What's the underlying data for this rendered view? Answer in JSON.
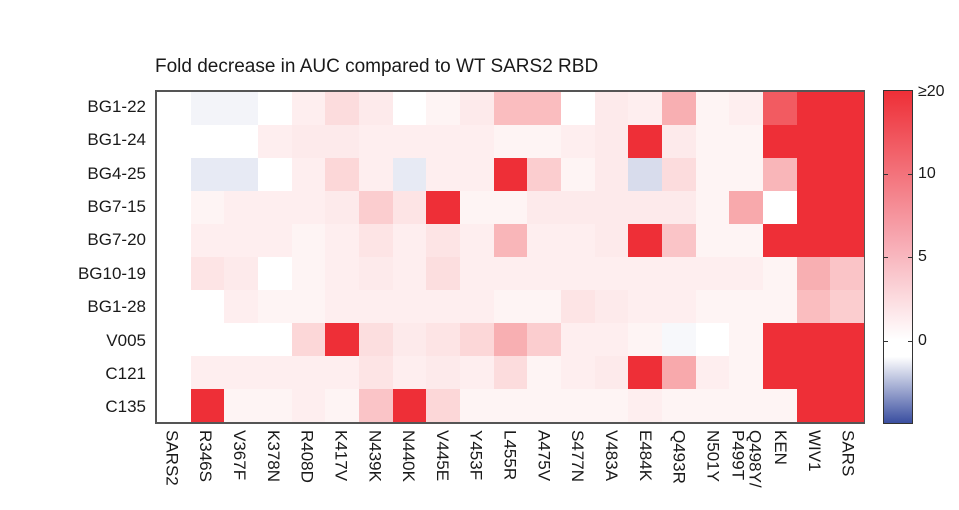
{
  "chart_data": {
    "type": "heatmap",
    "title": "Fold decrease in AUC compared to WT SARS2 RBD",
    "rows": [
      "BG1-22",
      "BG1-24",
      "BG4-25",
      "BG7-15",
      "BG7-20",
      "BG10-19",
      "BG1-28",
      "V005",
      "C121",
      "C135"
    ],
    "columns": [
      "SARS2",
      "R346S",
      "V367F",
      "K378N",
      "R408D",
      "K417V",
      "N439K",
      "N440K",
      "V445E",
      "Y453F",
      "L455R",
      "A475V",
      "S477N",
      "V483A",
      "E484K",
      "Q493R",
      "N501Y",
      "Q498Y/\nP499T",
      "KEN",
      "WIV1",
      "SARS"
    ],
    "values": [
      [
        0,
        -0.3,
        -0.3,
        0,
        0.2,
        0.8,
        0.3,
        0,
        0.1,
        0.3,
        2.5,
        2.5,
        0,
        0.3,
        0.2,
        3.5,
        0.1,
        0.2,
        13,
        20,
        20
      ],
      [
        0,
        0,
        0,
        0.2,
        0.3,
        0.3,
        0.2,
        0.2,
        0.2,
        0.2,
        0.1,
        0.1,
        0.2,
        0.3,
        20,
        0.3,
        0.1,
        0.1,
        20,
        20,
        20
      ],
      [
        0,
        -0.6,
        -0.6,
        0,
        0.2,
        1,
        0.2,
        -0.6,
        0.2,
        0.2,
        20,
        1.5,
        0.1,
        0.3,
        -1,
        0.8,
        0.1,
        0.1,
        3,
        20,
        20
      ],
      [
        0,
        0.1,
        0.2,
        0.2,
        0.2,
        0.3,
        1.5,
        0.5,
        20,
        0.1,
        0.1,
        0.3,
        0.3,
        0.3,
        0.3,
        0.3,
        0.1,
        4,
        0,
        20,
        20
      ],
      [
        0,
        0.2,
        0.2,
        0.2,
        0.1,
        0.2,
        0.5,
        0.2,
        0.5,
        0.2,
        3,
        0.2,
        0.2,
        0.3,
        20,
        2,
        0.1,
        0.1,
        20,
        20,
        20
      ],
      [
        0,
        0.5,
        0.3,
        0,
        0.1,
        0.2,
        0.3,
        0.2,
        0.7,
        0.2,
        0.2,
        0.2,
        0.2,
        0.2,
        0.2,
        0.2,
        0.2,
        0.2,
        0.1,
        3.5,
        2
      ],
      [
        0,
        0,
        0.2,
        0.1,
        0.1,
        0.2,
        0.2,
        0.2,
        0.2,
        0.2,
        0.1,
        0.1,
        0.5,
        0.3,
        0.2,
        0.2,
        0.1,
        0.1,
        0.1,
        2.5,
        1.5
      ],
      [
        0,
        0,
        0,
        0,
        1,
        20,
        0.7,
        0.3,
        0.5,
        1,
        3.5,
        1.5,
        0.2,
        0.2,
        0.1,
        -0.2,
        0,
        0.1,
        20,
        20,
        20
      ],
      [
        0,
        0.2,
        0.2,
        0.2,
        0.2,
        0.2,
        0.5,
        0.2,
        0.3,
        0.2,
        0.8,
        0.1,
        0.2,
        0.3,
        20,
        4,
        0.2,
        0.1,
        20,
        20,
        20
      ],
      [
        0,
        20,
        0.1,
        0.1,
        0.2,
        0.1,
        2,
        20,
        1,
        0.1,
        0.1,
        0.1,
        0.1,
        0.1,
        0.2,
        0.1,
        0.1,
        0.1,
        0.1,
        20,
        20
      ]
    ],
    "colorbar": {
      "ticks": [
        {
          "label": "≥20",
          "value": 20,
          "pos": 0.0
        },
        {
          "label": "10",
          "value": 10,
          "pos": 0.25
        },
        {
          "label": "5",
          "value": 5,
          "pos": 0.5
        },
        {
          "label": "0",
          "value": 0,
          "pos": 0.75
        }
      ],
      "min_color": "#3a4ea0",
      "mid_color": "#ffffff",
      "max_color": "#ee2f37"
    }
  }
}
